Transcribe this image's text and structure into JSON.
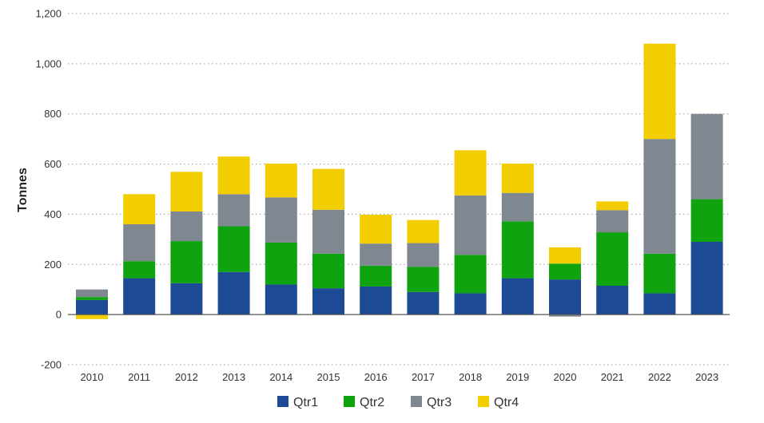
{
  "chart_data": {
    "type": "bar",
    "stacked": true,
    "categories": [
      "2010",
      "2011",
      "2012",
      "2013",
      "2014",
      "2015",
      "2016",
      "2017",
      "2018",
      "2019",
      "2020",
      "2021",
      "2022",
      "2023"
    ],
    "series": [
      {
        "name": "Qtr1",
        "color": "#1c4a94",
        "values": [
          58,
          145,
          125,
          170,
          120,
          105,
          112,
          90,
          85,
          145,
          140,
          115,
          85,
          290
        ]
      },
      {
        "name": "Qtr2",
        "color": "#0fa40f",
        "values": [
          12,
          68,
          168,
          182,
          167,
          138,
          83,
          100,
          153,
          227,
          63,
          213,
          158,
          170
        ]
      },
      {
        "name": "Qtr3",
        "color": "#7f8890",
        "values": [
          30,
          147,
          118,
          128,
          180,
          175,
          88,
          95,
          237,
          113,
          -8,
          88,
          457,
          340
        ]
      },
      {
        "name": "Qtr4",
        "color": "#f2cd00",
        "values": [
          -18,
          120,
          158,
          150,
          135,
          163,
          115,
          92,
          180,
          117,
          65,
          35,
          380,
          0
        ]
      }
    ],
    "ylabel": "Tonnes",
    "xlabel": "",
    "ylim": [
      -200,
      1200
    ],
    "yticks": [
      -200,
      0,
      200,
      400,
      600,
      800,
      1000,
      1200
    ],
    "ytick_labels": [
      "-200",
      "0",
      "200",
      "400",
      "600",
      "800",
      "1,000",
      "1,200"
    ],
    "grid": true,
    "legend_position": "bottom"
  }
}
